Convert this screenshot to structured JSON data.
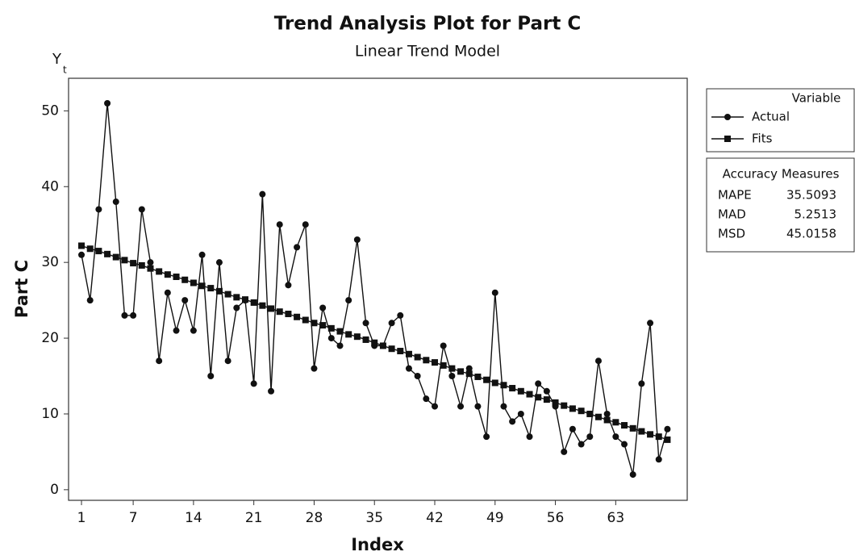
{
  "chart_data": {
    "type": "line",
    "title": "Trend Analysis Plot for Part C",
    "subtitle": "Linear Trend Model",
    "x_label": "Index",
    "y_label": "Part C",
    "y_symbol": "Y",
    "y_symbol_subscript": "t",
    "x": [
      1,
      2,
      3,
      4,
      5,
      6,
      7,
      8,
      9,
      10,
      11,
      12,
      13,
      14,
      15,
      16,
      17,
      18,
      19,
      20,
      21,
      22,
      23,
      24,
      25,
      26,
      27,
      28,
      29,
      30,
      31,
      32,
      33,
      34,
      35,
      36,
      37,
      38,
      39,
      40,
      41,
      42,
      43,
      44,
      45,
      46,
      47,
      48,
      49,
      50,
      51,
      52,
      53,
      54,
      55,
      56,
      57,
      58,
      59,
      60,
      61,
      62,
      63,
      64,
      65,
      66,
      67,
      68,
      69
    ],
    "xlim": [
      -0.5,
      71.3
    ],
    "xticks": [
      1,
      7,
      14,
      21,
      28,
      35,
      42,
      49,
      56,
      63
    ],
    "ylim": [
      -1.4,
      54.3
    ],
    "yticks": [
      0,
      10,
      20,
      30,
      40,
      50
    ],
    "grid": false,
    "legend_title": "Variable",
    "series": [
      {
        "name": "Actual",
        "color": "#111111",
        "marker": "circle",
        "values": [
          31,
          25,
          37,
          51,
          38,
          23,
          23,
          37,
          30,
          17,
          26,
          21,
          25,
          21,
          31,
          15,
          30,
          17,
          24,
          25,
          14,
          39,
          13,
          35,
          27,
          32,
          35,
          16,
          24,
          20,
          19,
          25,
          33,
          22,
          19,
          19,
          22,
          23,
          16,
          15,
          12,
          11,
          19,
          15,
          11,
          16,
          11,
          7,
          26,
          11,
          9,
          10,
          7,
          14,
          13,
          11,
          5,
          8,
          6,
          7,
          17,
          10,
          7,
          6,
          2,
          14,
          22,
          4,
          8
        ]
      },
      {
        "name": "Fits",
        "color": "#111111",
        "marker": "square",
        "values": [
          32.2,
          31.8,
          31.5,
          31.1,
          30.7,
          30.3,
          29.9,
          29.6,
          29.2,
          28.8,
          28.4,
          28.1,
          27.7,
          27.3,
          26.9,
          26.6,
          26.2,
          25.8,
          25.4,
          25.1,
          24.7,
          24.3,
          23.9,
          23.5,
          23.2,
          22.8,
          22.4,
          22.0,
          21.7,
          21.3,
          20.9,
          20.5,
          20.2,
          19.8,
          19.4,
          19.0,
          18.6,
          18.3,
          17.9,
          17.5,
          17.1,
          16.8,
          16.4,
          16.0,
          15.6,
          15.3,
          14.9,
          14.5,
          14.1,
          13.8,
          13.4,
          13.0,
          12.6,
          12.2,
          11.9,
          11.5,
          11.1,
          10.7,
          10.4,
          10.0,
          9.6,
          9.2,
          8.9,
          8.5,
          8.1,
          7.7,
          7.3,
          7.0,
          6.6
        ]
      }
    ],
    "accuracy_measures": {
      "title": "Accuracy Measures",
      "rows": [
        {
          "name": "MAPE",
          "value": 35.5093
        },
        {
          "name": "MAD",
          "value": 5.2513
        },
        {
          "name": "MSD",
          "value": 45.0158
        }
      ]
    }
  }
}
